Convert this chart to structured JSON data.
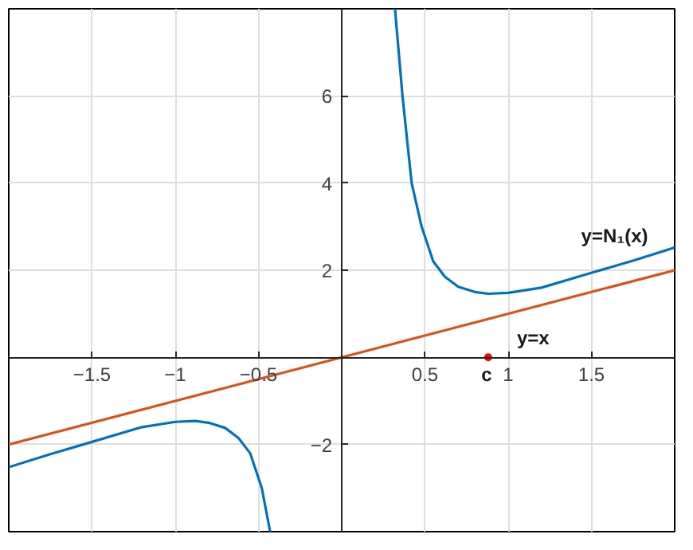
{
  "chart_data": {
    "type": "line",
    "xlim": [
      -2,
      2
    ],
    "ylim": [
      -4,
      8
    ],
    "xticks": [
      -1.5,
      -1,
      -0.5,
      0.5,
      1,
      1.5
    ],
    "yticks": [
      -2,
      2,
      4,
      6
    ],
    "grid": true,
    "marker": "none",
    "line_style": "solid",
    "series": [
      {
        "name": "y=N₁(x)",
        "color": "#0072bd",
        "x": [
          0.32,
          0.365,
          0.42,
          0.48,
          0.55,
          0.62,
          0.7,
          0.8,
          0.88,
          1.0,
          1.2,
          1.5,
          1.75,
          2.0
        ],
        "values": [
          8,
          6,
          4,
          3,
          2.2,
          1.85,
          1.62,
          1.5,
          1.46,
          1.48,
          1.6,
          1.94,
          2.22,
          2.52
        ]
      },
      {
        "color": "#0072bd",
        "x": [
          -2.0,
          -1.75,
          -1.5,
          -1.2,
          -1.0,
          -0.88,
          -0.8,
          -0.7,
          -0.62,
          -0.55,
          -0.48,
          -0.43
        ],
        "values": [
          -2.52,
          -2.22,
          -1.94,
          -1.6,
          -1.48,
          -1.46,
          -1.5,
          -1.62,
          -1.85,
          -2.2,
          -3,
          -4
        ]
      },
      {
        "name": "y=x",
        "color": "#d95319",
        "x": [
          -2,
          2
        ],
        "values": [
          -2,
          2
        ]
      },
      {
        "name": "c",
        "type": "scatter",
        "color": "#ff0000",
        "marker": "circle",
        "x": [
          0.88
        ],
        "values": [
          0
        ]
      }
    ]
  }
}
